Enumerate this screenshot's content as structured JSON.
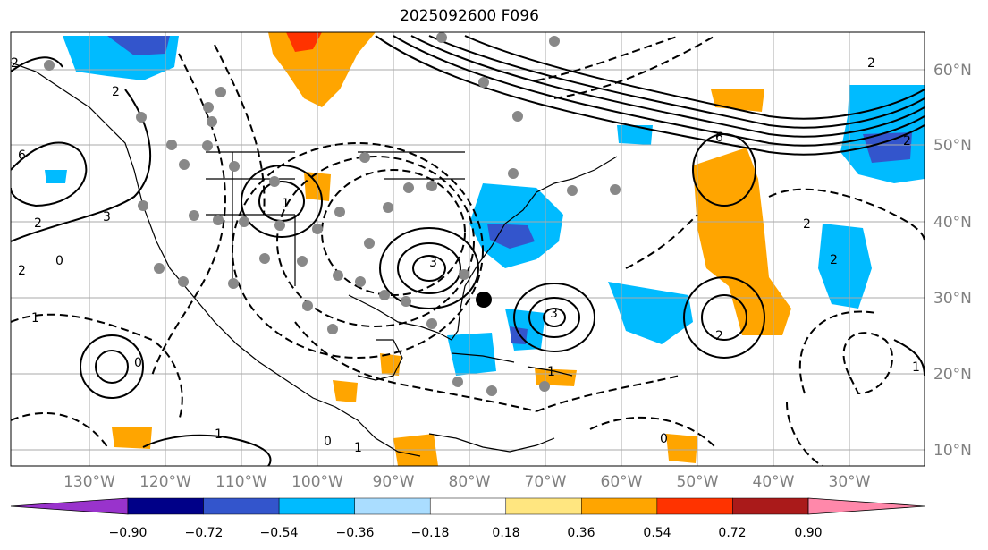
{
  "title": "2025092600 F096",
  "lat_labels": [
    "60°N",
    "50°N",
    "40°N",
    "30°N",
    "20°N",
    "10°N"
  ],
  "lon_labels": [
    "130°W",
    "120°W",
    "110°W",
    "100°W",
    "90°W",
    "80°W",
    "70°W",
    "60°W",
    "50°W",
    "40°W",
    "30°W"
  ],
  "colorbar": {
    "ticks": [
      "−0.90",
      "−0.72",
      "−0.54",
      "−0.36",
      "−0.18",
      "0.18",
      "0.36",
      "0.54",
      "0.72",
      "0.90"
    ],
    "colors": [
      "#9933cc",
      "#000088",
      "#3355cc",
      "#00bbff",
      "#aaddff",
      "#ffffff",
      "#ffe680",
      "#ffa500",
      "#ff3300",
      "#aa1a1a",
      "#ff88aa"
    ]
  },
  "contour_labels": [
    "2",
    "1",
    "2",
    "6",
    "3",
    "2",
    "2",
    "0",
    "1",
    "0",
    "1",
    "6",
    "2",
    "2",
    "3",
    "2",
    "2",
    "2",
    "1",
    "0",
    "1",
    "3",
    "1",
    "0"
  ]
}
